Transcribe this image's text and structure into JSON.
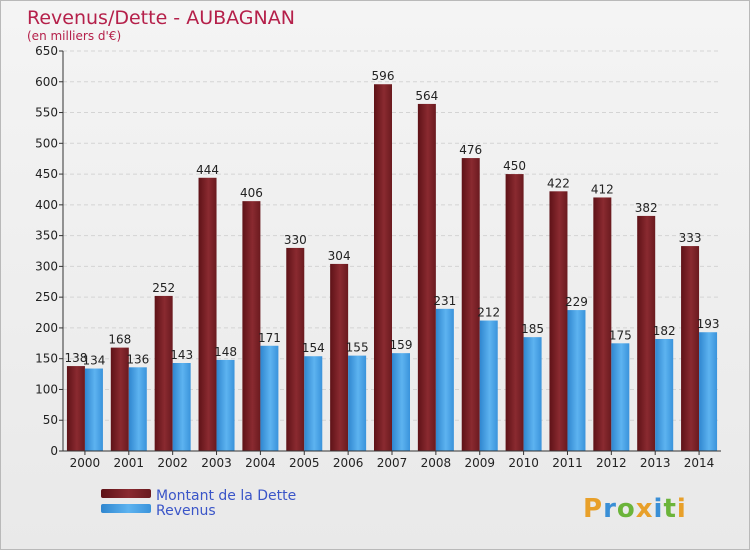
{
  "chart_data": {
    "type": "bar",
    "title": "Revenus/Dette - AUBAGNAN",
    "subtitle": "(en milliers d'€)",
    "categories": [
      "2000",
      "2001",
      "2002",
      "2003",
      "2004",
      "2005",
      "2006",
      "2007",
      "2008",
      "2009",
      "2010",
      "2011",
      "2012",
      "2013",
      "2014"
    ],
    "series": [
      {
        "name": "Montant de la Dette",
        "color": "#7a1f24",
        "values": [
          138,
          168,
          252,
          444,
          406,
          330,
          304,
          596,
          564,
          476,
          450,
          422,
          412,
          382,
          333
        ]
      },
      {
        "name": "Revenus",
        "color": "#3d9be0",
        "values": [
          134,
          136,
          143,
          148,
          171,
          154,
          155,
          159,
          231,
          212,
          185,
          229,
          175,
          182,
          193
        ]
      }
    ],
    "ylim": [
      0,
      650
    ],
    "yticks": [
      0,
      50,
      100,
      150,
      200,
      250,
      300,
      350,
      400,
      450,
      500,
      550,
      600,
      650
    ],
    "grid": true,
    "legend": "bottom-left"
  },
  "logo": {
    "text": "Proxiti",
    "letters": [
      "P",
      "r",
      "o",
      "x",
      "i",
      "t",
      "i"
    ]
  }
}
